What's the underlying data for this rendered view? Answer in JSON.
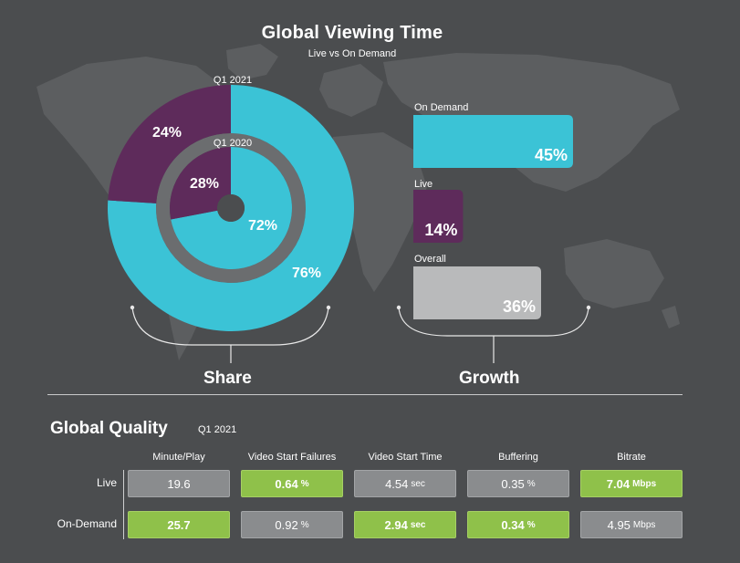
{
  "header": {
    "title": "Global Viewing Time",
    "subtitle": "Live vs On Demand"
  },
  "sections": {
    "share_label": "Share",
    "growth_label": "Growth"
  },
  "colors": {
    "teal": "#3bc3d6",
    "purple": "#5e2b5b",
    "gray_bar": "#b9babb",
    "green": "#8fc14a",
    "background": "#4b4d4f"
  },
  "chart_data": [
    {
      "type": "pie",
      "variant": "donut",
      "title": "Q1 2021",
      "slices": [
        {
          "name": "Live",
          "value": 24,
          "label": "24%"
        },
        {
          "name": "On Demand",
          "value": 76,
          "label": "76%"
        }
      ]
    },
    {
      "type": "pie",
      "variant": "donut",
      "title": "Q1 2020",
      "slices": [
        {
          "name": "Live",
          "value": 28,
          "label": "28%"
        },
        {
          "name": "On Demand",
          "value": 72,
          "label": "72%"
        }
      ]
    },
    {
      "type": "bar",
      "orientation": "horizontal",
      "categories": [
        "On Demand",
        "Live",
        "Overall"
      ],
      "values": [
        45,
        14,
        36
      ],
      "labels": [
        "45%",
        "14%",
        "36%"
      ]
    },
    {
      "type": "table",
      "title": "Global Quality",
      "period": "Q1 2021",
      "columns": [
        "Minute/Play",
        "Video Start Failures",
        "Video Start Time",
        "Buffering",
        "Bitrate"
      ],
      "rows": [
        {
          "name": "Live",
          "cells": [
            {
              "value": "19.6",
              "unit": "",
              "highlight": false
            },
            {
              "value": "0.64",
              "unit": "%",
              "highlight": true
            },
            {
              "value": "4.54",
              "unit": "sec",
              "highlight": false
            },
            {
              "value": "0.35",
              "unit": "%",
              "highlight": false
            },
            {
              "value": "7.04",
              "unit": "Mbps",
              "highlight": true
            }
          ]
        },
        {
          "name": "On-Demand",
          "cells": [
            {
              "value": "25.7",
              "unit": "",
              "highlight": true
            },
            {
              "value": "0.92",
              "unit": "%",
              "highlight": false
            },
            {
              "value": "2.94",
              "unit": "sec",
              "highlight": true
            },
            {
              "value": "0.34",
              "unit": "%",
              "highlight": true
            },
            {
              "value": "4.95",
              "unit": "Mbps",
              "highlight": false
            }
          ]
        }
      ]
    }
  ]
}
